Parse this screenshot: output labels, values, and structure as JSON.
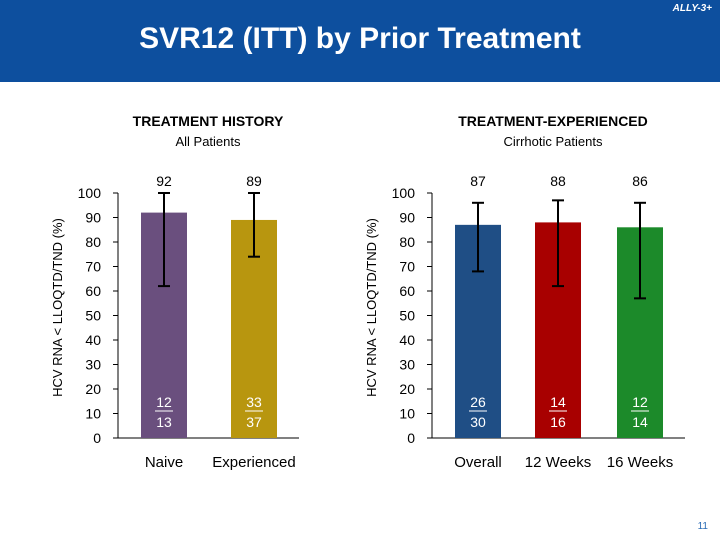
{
  "header": {
    "title": "SVR12 (ITT) by Prior Treatment",
    "study_tag": "ALLY-3+"
  },
  "colors": {
    "header_bg": "#0d4f9e",
    "naive": "#6a4f7e",
    "experienced": "#b8960f",
    "overall": "#1f4e85",
    "weeks12": "#a80000",
    "weeks16": "#1c8a2a"
  },
  "chart_data": [
    {
      "type": "bar",
      "title": "TREATMENT HISTORY",
      "subtitle": "All Patients",
      "ylabel": "HCV RNA < LLOQTD/TND (%)",
      "ylim": [
        0,
        100
      ],
      "yticks": [
        "0",
        "10",
        "20",
        "30",
        "40",
        "50",
        "60",
        "70",
        "80",
        "90",
        "100"
      ],
      "categories": [
        "Naive",
        "Experienced"
      ],
      "values": [
        92,
        89
      ],
      "value_labels": [
        "92",
        "89"
      ],
      "error_low": [
        62,
        74
      ],
      "error_high": [
        100,
        100
      ],
      "numerators": [
        "12",
        "33"
      ],
      "denominators": [
        "13",
        "37"
      ]
    },
    {
      "type": "bar",
      "title": "TREATMENT-EXPERIENCED",
      "subtitle": "Cirrhotic Patients",
      "ylabel": "HCV RNA < LLOQTD/TND (%)",
      "ylim": [
        0,
        100
      ],
      "yticks": [
        "0",
        "10",
        "20",
        "30",
        "40",
        "50",
        "60",
        "70",
        "80",
        "90",
        "100"
      ],
      "categories": [
        "Overall",
        "12 Weeks",
        "16 Weeks"
      ],
      "values": [
        87,
        88,
        86
      ],
      "value_labels": [
        "87",
        "88",
        "86"
      ],
      "error_low": [
        68,
        62,
        57
      ],
      "error_high": [
        96,
        97,
        96
      ],
      "numerators": [
        "26",
        "14",
        "12"
      ],
      "denominators": [
        "30",
        "16",
        "14"
      ]
    }
  ],
  "footer": {
    "page_number": "11"
  }
}
